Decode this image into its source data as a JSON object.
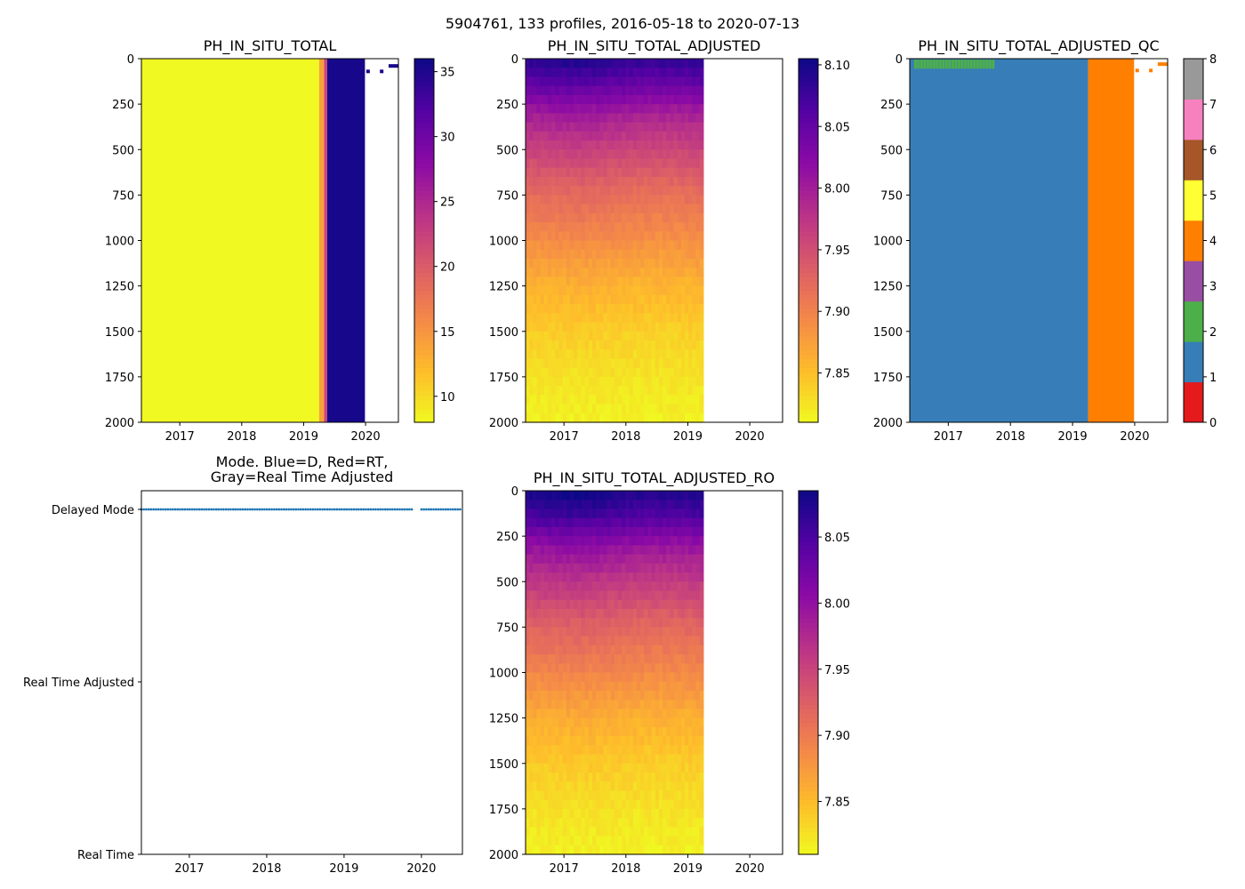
{
  "figure": {
    "suptitle": "5904761, 133 profiles, 2016-05-18 to 2020-07-13"
  },
  "chart_data": [
    {
      "id": "p1",
      "type": "heatmap",
      "title": "PH_IN_SITU_TOTAL",
      "xlabel": "",
      "ylabel": "",
      "xlim": [
        2016.38,
        2020.53
      ],
      "ylim": [
        2000,
        0
      ],
      "x_ticks": [
        "2017",
        "2018",
        "2019",
        "2020"
      ],
      "y_ticks": [
        "0",
        "250",
        "500",
        "750",
        "1000",
        "1250",
        "1500",
        "1750",
        "2000"
      ],
      "colormap": "plasma_r",
      "colorbar": {
        "range": [
          8.0,
          36.0
        ],
        "ticks": [
          "10",
          "15",
          "20",
          "25",
          "30",
          "35"
        ]
      },
      "segments": [
        {
          "x0": 2016.38,
          "x1": 2019.25,
          "value": 8.0
        },
        {
          "x0": 2019.25,
          "x1": 2019.33,
          "value": 14.0
        },
        {
          "x0": 2019.33,
          "x1": 2019.38,
          "value": 22.0
        },
        {
          "x0": 2019.38,
          "x1": 2019.99,
          "value": 35.5
        }
      ],
      "sparse_points": [
        {
          "x": 2020.4,
          "depth": 40,
          "value": 35.5
        },
        {
          "x": 2020.45,
          "depth": 40,
          "value": 35.5
        },
        {
          "x": 2020.5,
          "depth": 40,
          "value": 35.5
        },
        {
          "x": 2020.04,
          "depth": 70,
          "value": 35.5
        },
        {
          "x": 2020.26,
          "depth": 70,
          "value": 35.5
        }
      ]
    },
    {
      "id": "p2",
      "type": "heatmap",
      "title": "PH_IN_SITU_TOTAL_ADJUSTED",
      "xlabel": "",
      "ylabel": "",
      "xlim": [
        2016.38,
        2020.53
      ],
      "ylim": [
        2000,
        0
      ],
      "x_ticks": [
        "2017",
        "2018",
        "2019",
        "2020"
      ],
      "y_ticks": [
        "0",
        "250",
        "500",
        "750",
        "1000",
        "1250",
        "1500",
        "1750",
        "2000"
      ],
      "colormap": "plasma_r",
      "colorbar": {
        "range": [
          7.81,
          8.105
        ],
        "ticks": [
          "7.85",
          "7.90",
          "7.95",
          "8.00",
          "8.05",
          "8.10"
        ]
      },
      "data_x_range": [
        2016.38,
        2019.25
      ],
      "depth_profile": [
        {
          "depth": 0,
          "value": 8.09
        },
        {
          "depth": 150,
          "value": 8.05
        },
        {
          "depth": 300,
          "value": 8.0
        },
        {
          "depth": 500,
          "value": 7.96
        },
        {
          "depth": 750,
          "value": 7.92
        },
        {
          "depth": 1000,
          "value": 7.89
        },
        {
          "depth": 1250,
          "value": 7.86
        },
        {
          "depth": 1500,
          "value": 7.84
        },
        {
          "depth": 1750,
          "value": 7.825
        },
        {
          "depth": 2000,
          "value": 7.815
        }
      ]
    },
    {
      "id": "p3",
      "type": "heatmap",
      "title": "PH_IN_SITU_TOTAL_ADJUSTED_QC",
      "xlabel": "",
      "ylabel": "",
      "xlim": [
        2016.38,
        2020.53
      ],
      "ylim": [
        2000,
        0
      ],
      "x_ticks": [
        "2017",
        "2018",
        "2019",
        "2020"
      ],
      "y_ticks": [
        "0",
        "250",
        "500",
        "750",
        "1000",
        "1250",
        "1500",
        "1750",
        "2000"
      ],
      "colormap": "qc",
      "qc_colors": [
        "#e41a1c",
        "#377eb8",
        "#4daf4a",
        "#984ea3",
        "#ff7f00",
        "#ffff33",
        "#a65628",
        "#f781bf",
        "#999999"
      ],
      "colorbar": {
        "range": [
          0,
          8
        ],
        "ticks": [
          "0",
          "1",
          "2",
          "3",
          "4",
          "5",
          "6",
          "7",
          "8"
        ]
      },
      "segments": [
        {
          "x0": 2016.38,
          "x1": 2019.25,
          "flag": 1
        },
        {
          "x0": 2019.25,
          "x1": 2019.99,
          "flag": 4
        }
      ],
      "surface_flags": {
        "x0": 2016.45,
        "x1": 2017.75,
        "depth1": 50,
        "flag": 2
      },
      "sparse_points": [
        {
          "x": 2020.4,
          "depth": 30,
          "flag": 4
        },
        {
          "x": 2020.45,
          "depth": 30,
          "flag": 4
        },
        {
          "x": 2020.5,
          "depth": 30,
          "flag": 4
        },
        {
          "x": 2020.04,
          "depth": 65,
          "flag": 4
        },
        {
          "x": 2020.26,
          "depth": 65,
          "flag": 4
        }
      ]
    },
    {
      "id": "p4",
      "type": "scatter",
      "title_lines": [
        "Mode. Blue=D, Red=RT,",
        "Gray=Real Time Adjusted"
      ],
      "xlabel": "",
      "ylabel": "",
      "xlim": [
        2016.38,
        2020.53
      ],
      "x_ticks": [
        "2017",
        "2018",
        "2019",
        "2020"
      ],
      "y_categories": [
        "Delayed Mode",
        "Real Time Adjusted",
        "Real Time"
      ],
      "series": [
        {
          "name": "Delayed Mode",
          "color": "#1f77b4",
          "y": "Delayed Mode",
          "x_start": 2016.38,
          "x_end": 2020.5,
          "count": 133,
          "gaps": [
            [
              2019.88,
              2019.98
            ]
          ]
        }
      ]
    },
    {
      "id": "p5",
      "type": "heatmap",
      "title": "PH_IN_SITU_TOTAL_ADJUSTED_RO",
      "xlabel": "",
      "ylabel": "",
      "xlim": [
        2016.38,
        2020.53
      ],
      "ylim": [
        2000,
        0
      ],
      "x_ticks": [
        "2017",
        "2018",
        "2019",
        "2020"
      ],
      "y_ticks": [
        "0",
        "250",
        "500",
        "750",
        "1000",
        "1250",
        "1500",
        "1750",
        "2000"
      ],
      "colormap": "plasma_r",
      "colorbar": {
        "range": [
          7.81,
          8.085
        ],
        "ticks": [
          "7.85",
          "7.90",
          "7.95",
          "8.00",
          "8.05"
        ]
      },
      "data_x_range": [
        2016.38,
        2019.25
      ],
      "depth_profile": [
        {
          "depth": 0,
          "value": 8.08
        },
        {
          "depth": 150,
          "value": 8.05
        },
        {
          "depth": 300,
          "value": 8.0
        },
        {
          "depth": 500,
          "value": 7.96
        },
        {
          "depth": 750,
          "value": 7.92
        },
        {
          "depth": 1000,
          "value": 7.89
        },
        {
          "depth": 1250,
          "value": 7.86
        },
        {
          "depth": 1500,
          "value": 7.84
        },
        {
          "depth": 1750,
          "value": 7.825
        },
        {
          "depth": 2000,
          "value": 7.815
        }
      ]
    }
  ]
}
